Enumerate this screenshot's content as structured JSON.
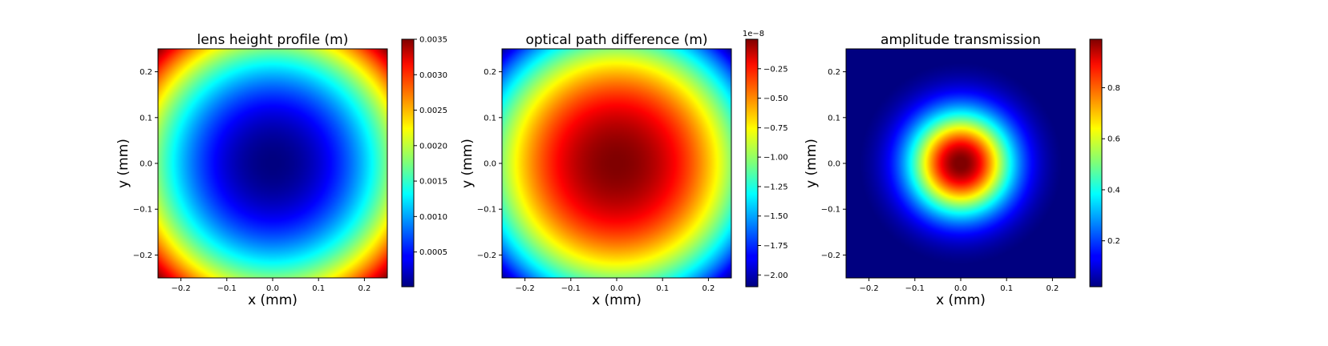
{
  "chart_data": [
    {
      "type": "heatmap",
      "title": "lens height profile (m)",
      "xlabel": "x (mm)",
      "ylabel": "y (mm)",
      "xlim": [
        -0.25,
        0.25
      ],
      "ylim": [
        -0.25,
        0.25
      ],
      "x_ticks": [
        -0.2,
        -0.1,
        0.0,
        0.1,
        0.2
      ],
      "y_ticks": [
        -0.2,
        -0.1,
        0.0,
        0.1,
        0.2
      ],
      "x_tick_labels": [
        "−0.2",
        "−0.1",
        "0.0",
        "0.1",
        "0.2"
      ],
      "y_tick_labels": [
        "−0.2",
        "−0.1",
        "0.0",
        "0.1",
        "0.2"
      ],
      "field": "paraboloid: value = vmin + (vmax - vmin) * r^2 / r_max^2, minimum at center, maximum at corners",
      "colormap": "jet",
      "colorbar": {
        "min": 1e-05,
        "max": 0.0035,
        "ticks": [
          0.0005,
          0.001,
          0.0015,
          0.002,
          0.0025,
          0.003,
          0.0035
        ],
        "tick_labels": [
          "0.0005",
          "0.0010",
          "0.0015",
          "0.0020",
          "0.0025",
          "0.0030",
          "0.0035"
        ],
        "offset_label": ""
      }
    },
    {
      "type": "heatmap",
      "title": "optical path difference (m)",
      "xlabel": "x (mm)",
      "ylabel": "y (mm)",
      "xlim": [
        -0.25,
        0.25
      ],
      "ylim": [
        -0.25,
        0.25
      ],
      "x_ticks": [
        -0.2,
        -0.1,
        0.0,
        0.1,
        0.2
      ],
      "y_ticks": [
        -0.2,
        -0.1,
        0.0,
        0.1,
        0.2
      ],
      "x_tick_labels": [
        "−0.2",
        "−0.1",
        "0.0",
        "0.1",
        "0.2"
      ],
      "y_tick_labels": [
        "−0.2",
        "−0.1",
        "0.0",
        "0.1",
        "0.2"
      ],
      "field": "inverted paraboloid: maximum (≈0) at center, minimum at corners",
      "colormap": "jet",
      "colorbar": {
        "min": -2.1e-08,
        "max": -0.0,
        "ticks": [
          -2e-08,
          -1.75e-08,
          -1.5e-08,
          -1.25e-08,
          -1e-08,
          -7.5e-09,
          -5e-09,
          -2.5e-09
        ],
        "tick_labels": [
          "−2.00",
          "−1.75",
          "−1.50",
          "−1.25",
          "−1.00",
          "−0.75",
          "−0.50",
          "−0.25"
        ],
        "offset_label": "1e−8"
      }
    },
    {
      "type": "heatmap",
      "title": "amplitude transmission",
      "xlabel": "x (mm)",
      "ylabel": "y (mm)",
      "xlim": [
        -0.25,
        0.25
      ],
      "ylim": [
        -0.25,
        0.25
      ],
      "x_ticks": [
        -0.2,
        -0.1,
        0.0,
        0.1,
        0.2
      ],
      "y_ticks": [
        -0.2,
        -0.1,
        0.0,
        0.1,
        0.2
      ],
      "x_tick_labels": [
        "−0.2",
        "−0.1",
        "0.0",
        "0.1",
        "0.2"
      ],
      "y_tick_labels": [
        "−0.2",
        "−0.1",
        "0.0",
        "0.1",
        "0.2"
      ],
      "field": "gaussian: value = exp(-(r/0.1)^2 ... ) peaking at center ≈ 0.99",
      "colormap": "jet",
      "colorbar": {
        "min": 0.02,
        "max": 0.99,
        "ticks": [
          0.2,
          0.4,
          0.6,
          0.8
        ],
        "tick_labels": [
          "0.2",
          "0.4",
          "0.6",
          "0.8"
        ],
        "offset_label": ""
      }
    }
  ]
}
